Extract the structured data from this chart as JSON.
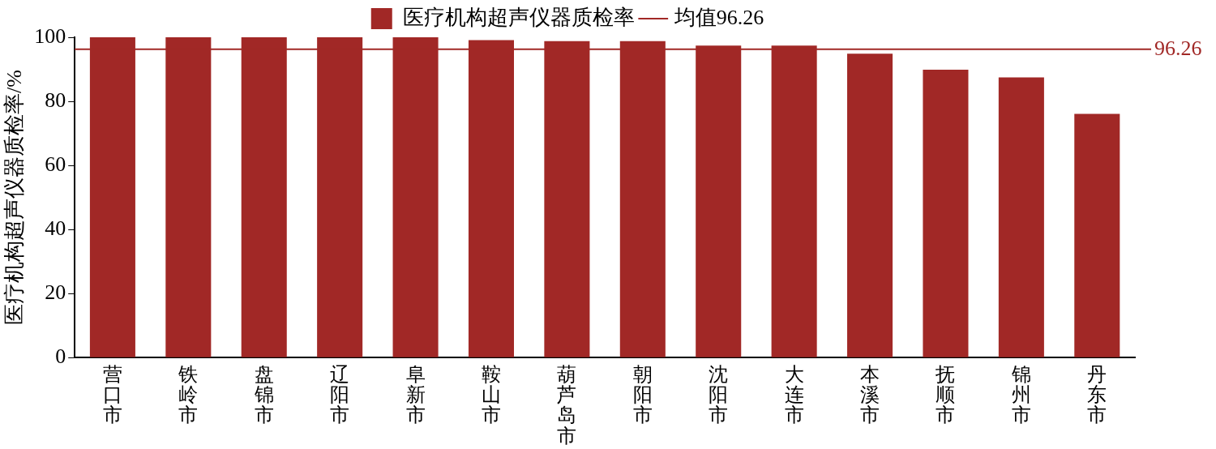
{
  "chart_data": {
    "type": "bar",
    "ylabel": "医疗机构超声仪器质检率/%",
    "categories": [
      "营口市",
      "铁岭市",
      "盘锦市",
      "辽阳市",
      "阜新市",
      "鞍山市",
      "葫芦岛市",
      "朝阳市",
      "沈阳市",
      "大连市",
      "本溪市",
      "抚顺市",
      "锦州市",
      "丹东市"
    ],
    "series": [
      {
        "name": "医疗机构超声仪器质检率",
        "color": "#a12826",
        "values": [
          100,
          100,
          100,
          100,
          100,
          99.1,
          98.8,
          98.8,
          97.4,
          97.4,
          94.9,
          89.9,
          87.5,
          76.1
        ]
      }
    ],
    "ylim": [
      0,
      100
    ],
    "yticks": [
      0,
      20,
      40,
      60,
      80,
      100
    ],
    "grid": false,
    "legend": "top",
    "ref_lines": [
      {
        "axis": "y",
        "value": 96.26,
        "label": "均值96.26",
        "color": "#a12826"
      }
    ],
    "annotations": [
      "96.26"
    ]
  }
}
